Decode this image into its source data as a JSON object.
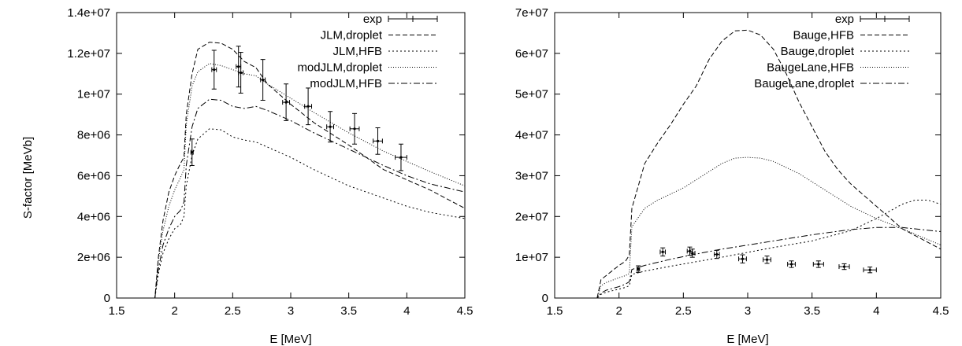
{
  "figure": {
    "ylabel": "S-factor [MeVb]"
  },
  "chart_data": [
    {
      "type": "line",
      "xlabel": "E [MeV]",
      "ylabel": "S-factor [MeVb]",
      "xlim": [
        1.5,
        4.5
      ],
      "ylim": [
        0,
        14000000
      ],
      "x_ticks": [
        "1.5",
        "2",
        "2.5",
        "3",
        "3.5",
        "4",
        "4.5"
      ],
      "y_ticks": [
        "0",
        "2e+06",
        "4e+06",
        "6e+06",
        "8e+06",
        "1e+07",
        "1.2e+07",
        "1.4e+07"
      ],
      "grid": false,
      "legend_position": "top-right",
      "experiment": {
        "name": "exp",
        "points": [
          {
            "x": 2.15,
            "y": 7150000,
            "xerr": 0.01,
            "yerr": 650000
          },
          {
            "x": 2.34,
            "y": 11200000,
            "xerr": 0.02,
            "yerr": 950000
          },
          {
            "x": 2.55,
            "y": 11350000,
            "xerr": 0.02,
            "yerr": 1000000
          },
          {
            "x": 2.57,
            "y": 11050000,
            "xerr": 0.02,
            "yerr": 1000000
          },
          {
            "x": 2.76,
            "y": 10700000,
            "xerr": 0.02,
            "yerr": 1000000
          },
          {
            "x": 2.96,
            "y": 9600000,
            "xerr": 0.03,
            "yerr": 900000
          },
          {
            "x": 3.15,
            "y": 9400000,
            "xerr": 0.03,
            "yerr": 900000
          },
          {
            "x": 3.34,
            "y": 8400000,
            "xerr": 0.03,
            "yerr": 750000
          },
          {
            "x": 3.55,
            "y": 8300000,
            "xerr": 0.04,
            "yerr": 750000
          },
          {
            "x": 3.75,
            "y": 7700000,
            "xerr": 0.04,
            "yerr": 650000
          },
          {
            "x": 3.95,
            "y": 6900000,
            "xerr": 0.05,
            "yerr": 650000
          }
        ]
      },
      "series": [
        {
          "name": "JLM,droplet",
          "dash": "6,3",
          "x": [
            1.83,
            1.86,
            1.9,
            1.95,
            2.0,
            2.05,
            2.08,
            2.1,
            2.15,
            2.2,
            2.3,
            2.4,
            2.5,
            2.6,
            2.7,
            2.8,
            3.0,
            3.2,
            3.5,
            3.8,
            4.0,
            4.2,
            4.5
          ],
          "y": [
            0,
            2000000,
            3800000,
            5200000,
            6000000,
            6600000,
            6900000,
            9000000,
            11000000,
            12200000,
            12550000,
            12500000,
            12200000,
            11600000,
            11300000,
            10500000,
            9500000,
            8600000,
            7500000,
            6300000,
            5800000,
            5300000,
            4400000
          ]
        },
        {
          "name": "JLM,HFB",
          "dash": "2,3",
          "x": [
            1.83,
            1.86,
            1.9,
            1.95,
            2.0,
            2.05,
            2.08,
            2.1,
            2.15,
            2.2,
            2.3,
            2.4,
            2.5,
            2.6,
            2.7,
            2.8,
            3.0,
            3.2,
            3.5,
            3.8,
            4.0,
            4.2,
            4.5
          ],
          "y": [
            0,
            1200000,
            2200000,
            2900000,
            3400000,
            3600000,
            4000000,
            5500000,
            7000000,
            7800000,
            8300000,
            8250000,
            7900000,
            7750000,
            7650000,
            7400000,
            6900000,
            6300000,
            5500000,
            4900000,
            4500000,
            4200000,
            3900000
          ]
        },
        {
          "name": "modJLM,droplet",
          "dash": "1,2",
          "x": [
            1.83,
            1.86,
            1.9,
            1.95,
            2.0,
            2.05,
            2.08,
            2.1,
            2.15,
            2.2,
            2.3,
            2.4,
            2.5,
            2.6,
            2.7,
            2.8,
            3.0,
            3.2,
            3.5,
            3.8,
            4.0,
            4.2,
            4.5
          ],
          "y": [
            0,
            1800000,
            3300000,
            4500000,
            5300000,
            5900000,
            6300000,
            8500000,
            10400000,
            11100000,
            11500000,
            11400000,
            11200000,
            11000000,
            10900000,
            10500000,
            9800000,
            9100000,
            8100000,
            7200000,
            6700000,
            6200000,
            5500000
          ]
        },
        {
          "name": "modJLM,HFB",
          "dash": "8,3,2,3",
          "x": [
            1.83,
            1.86,
            1.9,
            1.95,
            2.0,
            2.05,
            2.08,
            2.1,
            2.15,
            2.2,
            2.3,
            2.4,
            2.5,
            2.6,
            2.7,
            2.8,
            3.0,
            3.2,
            3.5,
            3.8,
            4.0,
            4.2,
            4.5
          ],
          "y": [
            0,
            1400000,
            2600000,
            3400000,
            4000000,
            4300000,
            4700000,
            6500000,
            8400000,
            9300000,
            9750000,
            9700000,
            9400000,
            9300000,
            9400000,
            9200000,
            8700000,
            8100000,
            7300000,
            6500000,
            6000000,
            5600000,
            5200000
          ]
        }
      ]
    },
    {
      "type": "line",
      "xlabel": "E [MeV]",
      "ylabel": "",
      "xlim": [
        1.5,
        4.5
      ],
      "ylim": [
        0,
        70000000
      ],
      "x_ticks": [
        "1.5",
        "2",
        "2.5",
        "3",
        "3.5",
        "4",
        "4.5"
      ],
      "y_ticks": [
        "0",
        "1e+07",
        "2e+07",
        "3e+07",
        "4e+07",
        "5e+07",
        "6e+07",
        "7e+07"
      ],
      "grid": false,
      "legend_position": "top-right",
      "experiment": {
        "name": "exp",
        "points": [
          {
            "x": 2.15,
            "y": 7100000,
            "xerr": 0.01,
            "yerr": 800000
          },
          {
            "x": 2.34,
            "y": 11300000,
            "xerr": 0.02,
            "yerr": 1000000
          },
          {
            "x": 2.55,
            "y": 11500000,
            "xerr": 0.02,
            "yerr": 1000000
          },
          {
            "x": 2.57,
            "y": 11000000,
            "xerr": 0.02,
            "yerr": 1000000
          },
          {
            "x": 2.76,
            "y": 10700000,
            "xerr": 0.02,
            "yerr": 1000000
          },
          {
            "x": 2.96,
            "y": 9600000,
            "xerr": 0.03,
            "yerr": 1000000
          },
          {
            "x": 3.15,
            "y": 9400000,
            "xerr": 0.03,
            "yerr": 900000
          },
          {
            "x": 3.34,
            "y": 8300000,
            "xerr": 0.03,
            "yerr": 800000
          },
          {
            "x": 3.55,
            "y": 8300000,
            "xerr": 0.04,
            "yerr": 800000
          },
          {
            "x": 3.75,
            "y": 7700000,
            "xerr": 0.04,
            "yerr": 700000
          },
          {
            "x": 3.95,
            "y": 6900000,
            "xerr": 0.05,
            "yerr": 700000
          }
        ]
      },
      "series": [
        {
          "name": "Bauge,HFB",
          "dash": "6,3",
          "x": [
            1.83,
            1.86,
            1.9,
            2.0,
            2.05,
            2.08,
            2.1,
            2.2,
            2.3,
            2.4,
            2.5,
            2.6,
            2.7,
            2.8,
            2.9,
            3.0,
            3.1,
            3.2,
            3.3,
            3.4,
            3.5,
            3.6,
            3.7,
            3.8,
            4.0,
            4.2,
            4.5
          ],
          "y": [
            0,
            4500000,
            5500000,
            8000000,
            9000000,
            10500000,
            22000000,
            33000000,
            38000000,
            42500000,
            47500000,
            52000000,
            58500000,
            63000000,
            65500000,
            65700000,
            64500000,
            61000000,
            55000000,
            48000000,
            42000000,
            36000000,
            31500000,
            28000000,
            22500000,
            17000000,
            12000000
          ]
        },
        {
          "name": "Bauge,droplet",
          "dash": "2,3",
          "x": [
            1.83,
            1.86,
            1.9,
            2.0,
            2.05,
            2.08,
            2.1,
            2.2,
            2.4,
            2.6,
            2.8,
            3.0,
            3.2,
            3.5,
            3.8,
            4.0,
            4.2,
            4.3,
            4.4,
            4.5
          ],
          "y": [
            0,
            900000,
            1400000,
            2200000,
            2600000,
            3000000,
            5800000,
            6600000,
            7800000,
            8900000,
            10000000,
            11200000,
            12400000,
            14000000,
            16500000,
            19500000,
            23000000,
            24000000,
            24000000,
            23000000
          ]
        },
        {
          "name": "BaugeLane,HFB",
          "dash": "1,2",
          "x": [
            1.83,
            1.86,
            1.9,
            2.0,
            2.05,
            2.08,
            2.1,
            2.2,
            2.3,
            2.4,
            2.5,
            2.6,
            2.7,
            2.8,
            2.9,
            3.0,
            3.1,
            3.2,
            3.4,
            3.6,
            3.8,
            4.0,
            4.2,
            4.5
          ],
          "y": [
            0,
            3000000,
            3800000,
            5000000,
            5500000,
            6000000,
            17500000,
            22000000,
            24000000,
            25500000,
            27000000,
            29000000,
            31000000,
            33000000,
            34300000,
            34500000,
            34300000,
            33500000,
            30500000,
            26500000,
            22500000,
            19500000,
            17000000,
            13000000
          ]
        },
        {
          "name": "BaugeLane,droplet",
          "dash": "8,3,2,3",
          "x": [
            1.83,
            1.86,
            1.9,
            2.0,
            2.05,
            2.08,
            2.1,
            2.2,
            2.4,
            2.6,
            2.8,
            3.0,
            3.2,
            3.5,
            3.8,
            4.0,
            4.2,
            4.5
          ],
          "y": [
            0,
            1200000,
            1900000,
            2800000,
            3400000,
            4000000,
            7000000,
            8000000,
            9500000,
            10800000,
            12000000,
            13000000,
            14000000,
            15500000,
            16800000,
            17300000,
            17300000,
            16300000
          ]
        }
      ]
    }
  ]
}
